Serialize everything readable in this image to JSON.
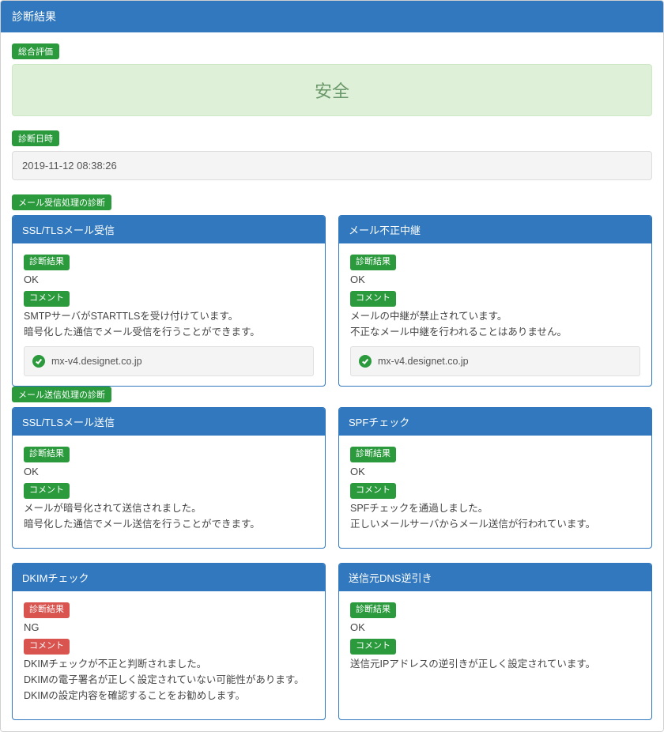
{
  "colors": {
    "panel_blue": "#3178be",
    "tag_green": "#2a9a3d",
    "tag_red": "#d9534f",
    "safe_bg": "#dff0d8",
    "safe_text": "#6a986a",
    "gray_box_bg": "#f4f4f4",
    "gray_box_border": "#dcdcdc"
  },
  "header": {
    "title": "診断結果"
  },
  "overall": {
    "label": "総合評価",
    "safe_text": "安全"
  },
  "diagnosis_date": {
    "label": "診断日時",
    "value": "2019-11-12 08:38:26"
  },
  "recv_section": {
    "label": "メール受信処理の診断",
    "cards": [
      {
        "title": "SSL/TLSメール受信",
        "result_label": "診断結果",
        "result_value": "OK",
        "result_color": "green",
        "comment_label": "コメント",
        "comment_color": "green",
        "comment_lines": [
          "SMTPサーバがSTARTTLSを受け付けています。",
          "暗号化した通信でメール受信を行うことができます。"
        ],
        "host": "mx-v4.designet.co.jp"
      },
      {
        "title": "メール不正中継",
        "result_label": "診断結果",
        "result_value": "OK",
        "result_color": "green",
        "comment_label": "コメント",
        "comment_color": "green",
        "comment_lines": [
          "メールの中継が禁止されています。",
          "不正なメール中継を行われることはありません。"
        ],
        "host": "mx-v4.designet.co.jp"
      }
    ]
  },
  "send_section": {
    "label": "メール送信処理の診断",
    "rows": [
      [
        {
          "title": "SSL/TLSメール送信",
          "result_label": "診断結果",
          "result_value": "OK",
          "result_color": "green",
          "comment_label": "コメント",
          "comment_color": "green",
          "comment_lines": [
            "メールが暗号化されて送信されました。",
            "暗号化した通信でメール送信を行うことができます。"
          ]
        },
        {
          "title": "SPFチェック",
          "result_label": "診断結果",
          "result_value": "OK",
          "result_color": "green",
          "comment_label": "コメント",
          "comment_color": "green",
          "comment_lines": [
            "SPFチェックを通過しました。",
            "正しいメールサーバからメール送信が行われています。"
          ]
        }
      ],
      [
        {
          "title": "DKIMチェック",
          "result_label": "診断結果",
          "result_value": "NG",
          "result_color": "red",
          "comment_label": "コメント",
          "comment_color": "red",
          "comment_lines": [
            "DKIMチェックが不正と判断されました。",
            "DKIMの電子署名が正しく設定されていない可能性があります。",
            "DKIMの設定内容を確認することをお勧めします。"
          ]
        },
        {
          "title": "送信元DNS逆引き",
          "result_label": "診断結果",
          "result_value": "OK",
          "result_color": "green",
          "comment_label": "コメント",
          "comment_color": "green",
          "comment_lines": [
            "送信元IPアドレスの逆引きが正しく設定されています。"
          ]
        }
      ]
    ]
  }
}
